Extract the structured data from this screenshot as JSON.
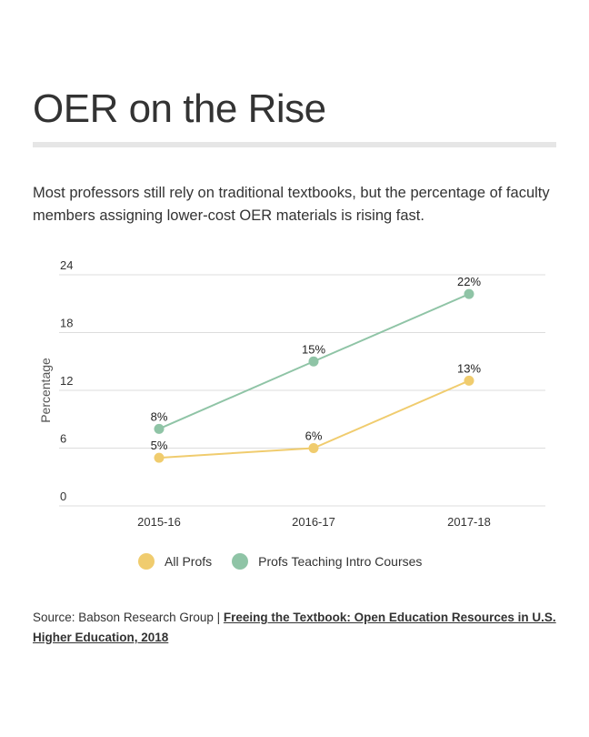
{
  "title": "OER on the Rise",
  "subtitle": "Most professors still rely on traditional textbooks, but the percentage of faculty members assigning lower-cost OER materials is rising fast.",
  "source": {
    "prefix": "Source: Babson Research Group | ",
    "link_text": "Freeing the Textbook: Open Education Resources in U.S. Higher Education, 2018"
  },
  "chart_data": {
    "type": "line",
    "ylabel": "Percentage",
    "xlabel": "",
    "categories": [
      "2015-16",
      "2016-17",
      "2017-18"
    ],
    "ylim": [
      0,
      24
    ],
    "yticks": [
      "0",
      "6",
      "12",
      "18",
      "24"
    ],
    "grid": true,
    "legend": "bottom",
    "series": [
      {
        "name": "All Profs",
        "values": [
          5,
          6,
          13
        ],
        "labels": [
          "5%",
          "6%",
          "13%"
        ],
        "color": "#f0cc6e"
      },
      {
        "name": "Profs Teaching Intro Courses",
        "values": [
          8,
          15,
          22
        ],
        "labels": [
          "8%",
          "15%",
          "22%"
        ],
        "color": "#8fc4a6"
      }
    ]
  }
}
